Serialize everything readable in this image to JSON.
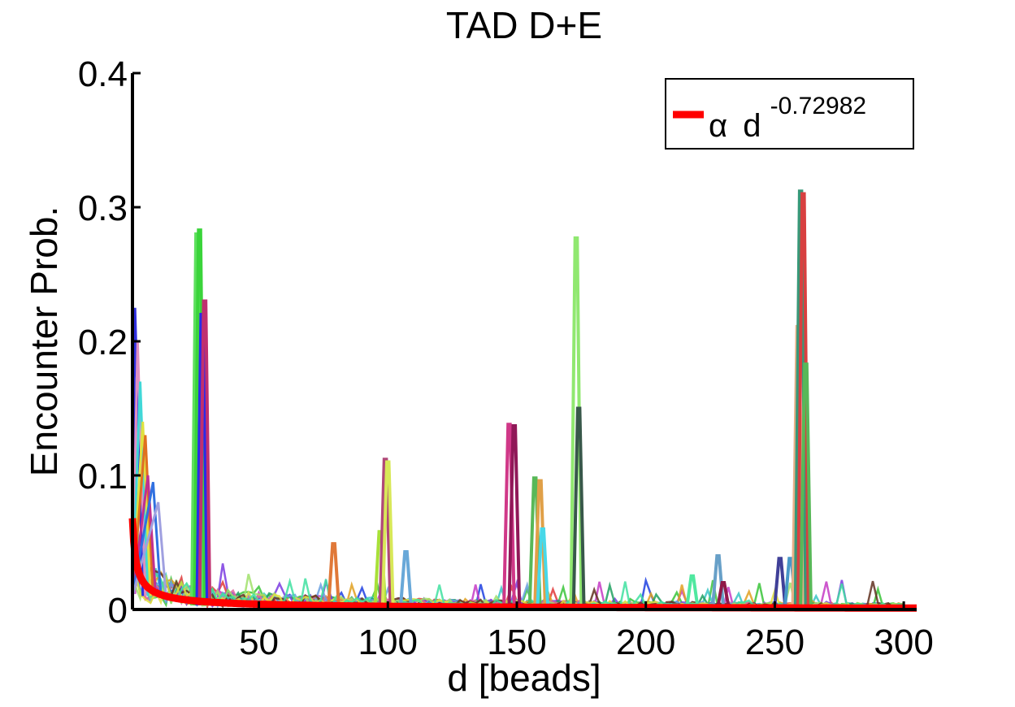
{
  "chart_data": {
    "type": "line",
    "title": "TAD D+E",
    "xlabel": "d [beads]",
    "ylabel": "Encounter Prob.",
    "xlim": [
      1,
      305
    ],
    "ylim": [
      0,
      0.4
    ],
    "xticks": [
      50,
      100,
      150,
      200,
      250,
      300
    ],
    "xtick_labels": [
      "50",
      "100",
      "150",
      "200",
      "250",
      "300"
    ],
    "yticks": [
      0,
      0.1,
      0.2,
      0.3,
      0.4
    ],
    "ytick_labels": [
      "0",
      "0.1",
      "0.2",
      "0.3",
      "0.4"
    ],
    "grid": false,
    "legend": {
      "placement": "top-right",
      "entries": [
        {
          "symbol": "α",
          "base": "d",
          "exponent": "-0.72982",
          "color": "#ff0000"
        }
      ]
    },
    "fit": {
      "color": "#ff0000",
      "exponent": -0.72982,
      "amplitude": 0.068
    },
    "background_peaks": [
      {
        "x": 26,
        "y": 0.28,
        "color": "#5ee05e"
      },
      {
        "x": 27,
        "y": 0.283,
        "color": "#3ad43a"
      },
      {
        "x": 28,
        "y": 0.22,
        "color": "#2a2ae8"
      },
      {
        "x": 29,
        "y": 0.23,
        "color": "#c03070"
      },
      {
        "x": 79,
        "y": 0.049,
        "color": "#e07838"
      },
      {
        "x": 97,
        "y": 0.058,
        "color": "#a8e038"
      },
      {
        "x": 99,
        "y": 0.112,
        "color": "#b04878"
      },
      {
        "x": 100,
        "y": 0.11,
        "color": "#d8e858"
      },
      {
        "x": 107,
        "y": 0.043,
        "color": "#68a8d8"
      },
      {
        "x": 147,
        "y": 0.138,
        "color": "#d03888"
      },
      {
        "x": 149,
        "y": 0.137,
        "color": "#901858"
      },
      {
        "x": 157,
        "y": 0.098,
        "color": "#58b858"
      },
      {
        "x": 159,
        "y": 0.096,
        "color": "#e0a048"
      },
      {
        "x": 160,
        "y": 0.06,
        "color": "#48d8e8"
      },
      {
        "x": 173,
        "y": 0.277,
        "color": "#90e870"
      },
      {
        "x": 174,
        "y": 0.15,
        "color": "#38584a"
      },
      {
        "x": 218,
        "y": 0.025,
        "color": "#50e8a0"
      },
      {
        "x": 228,
        "y": 0.04,
        "color": "#68a0c8"
      },
      {
        "x": 230,
        "y": 0.02,
        "color": "#901848"
      },
      {
        "x": 252,
        "y": 0.038,
        "color": "#404098"
      },
      {
        "x": 256,
        "y": 0.038,
        "color": "#4898c8"
      },
      {
        "x": 259,
        "y": 0.211,
        "color": "#e8b088"
      },
      {
        "x": 260,
        "y": 0.312,
        "color": "#389878"
      },
      {
        "x": 261,
        "y": 0.31,
        "color": "#d84040"
      },
      {
        "x": 262,
        "y": 0.183,
        "color": "#58b858"
      }
    ]
  }
}
